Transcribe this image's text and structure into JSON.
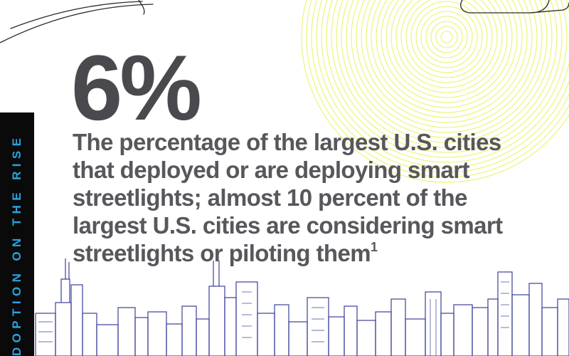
{
  "side_label": "DOPTION ON THE RISE",
  "stat": {
    "value": "6%",
    "description": "The percentage of the largest U.S. cities that deployed or are deploying smart streetlights; almost 10 percent of the largest U.S. cities are considering smart streetlights or piloting them",
    "footnote": "1"
  },
  "colors": {
    "accent_blue": "#2aa3df",
    "stat_gray": "#4a4a4e",
    "text_gray": "#57575c",
    "circles_yellow": "#eef26a",
    "skyline_blue": "#3b3f9a",
    "band_black": "#0a0a0a"
  }
}
